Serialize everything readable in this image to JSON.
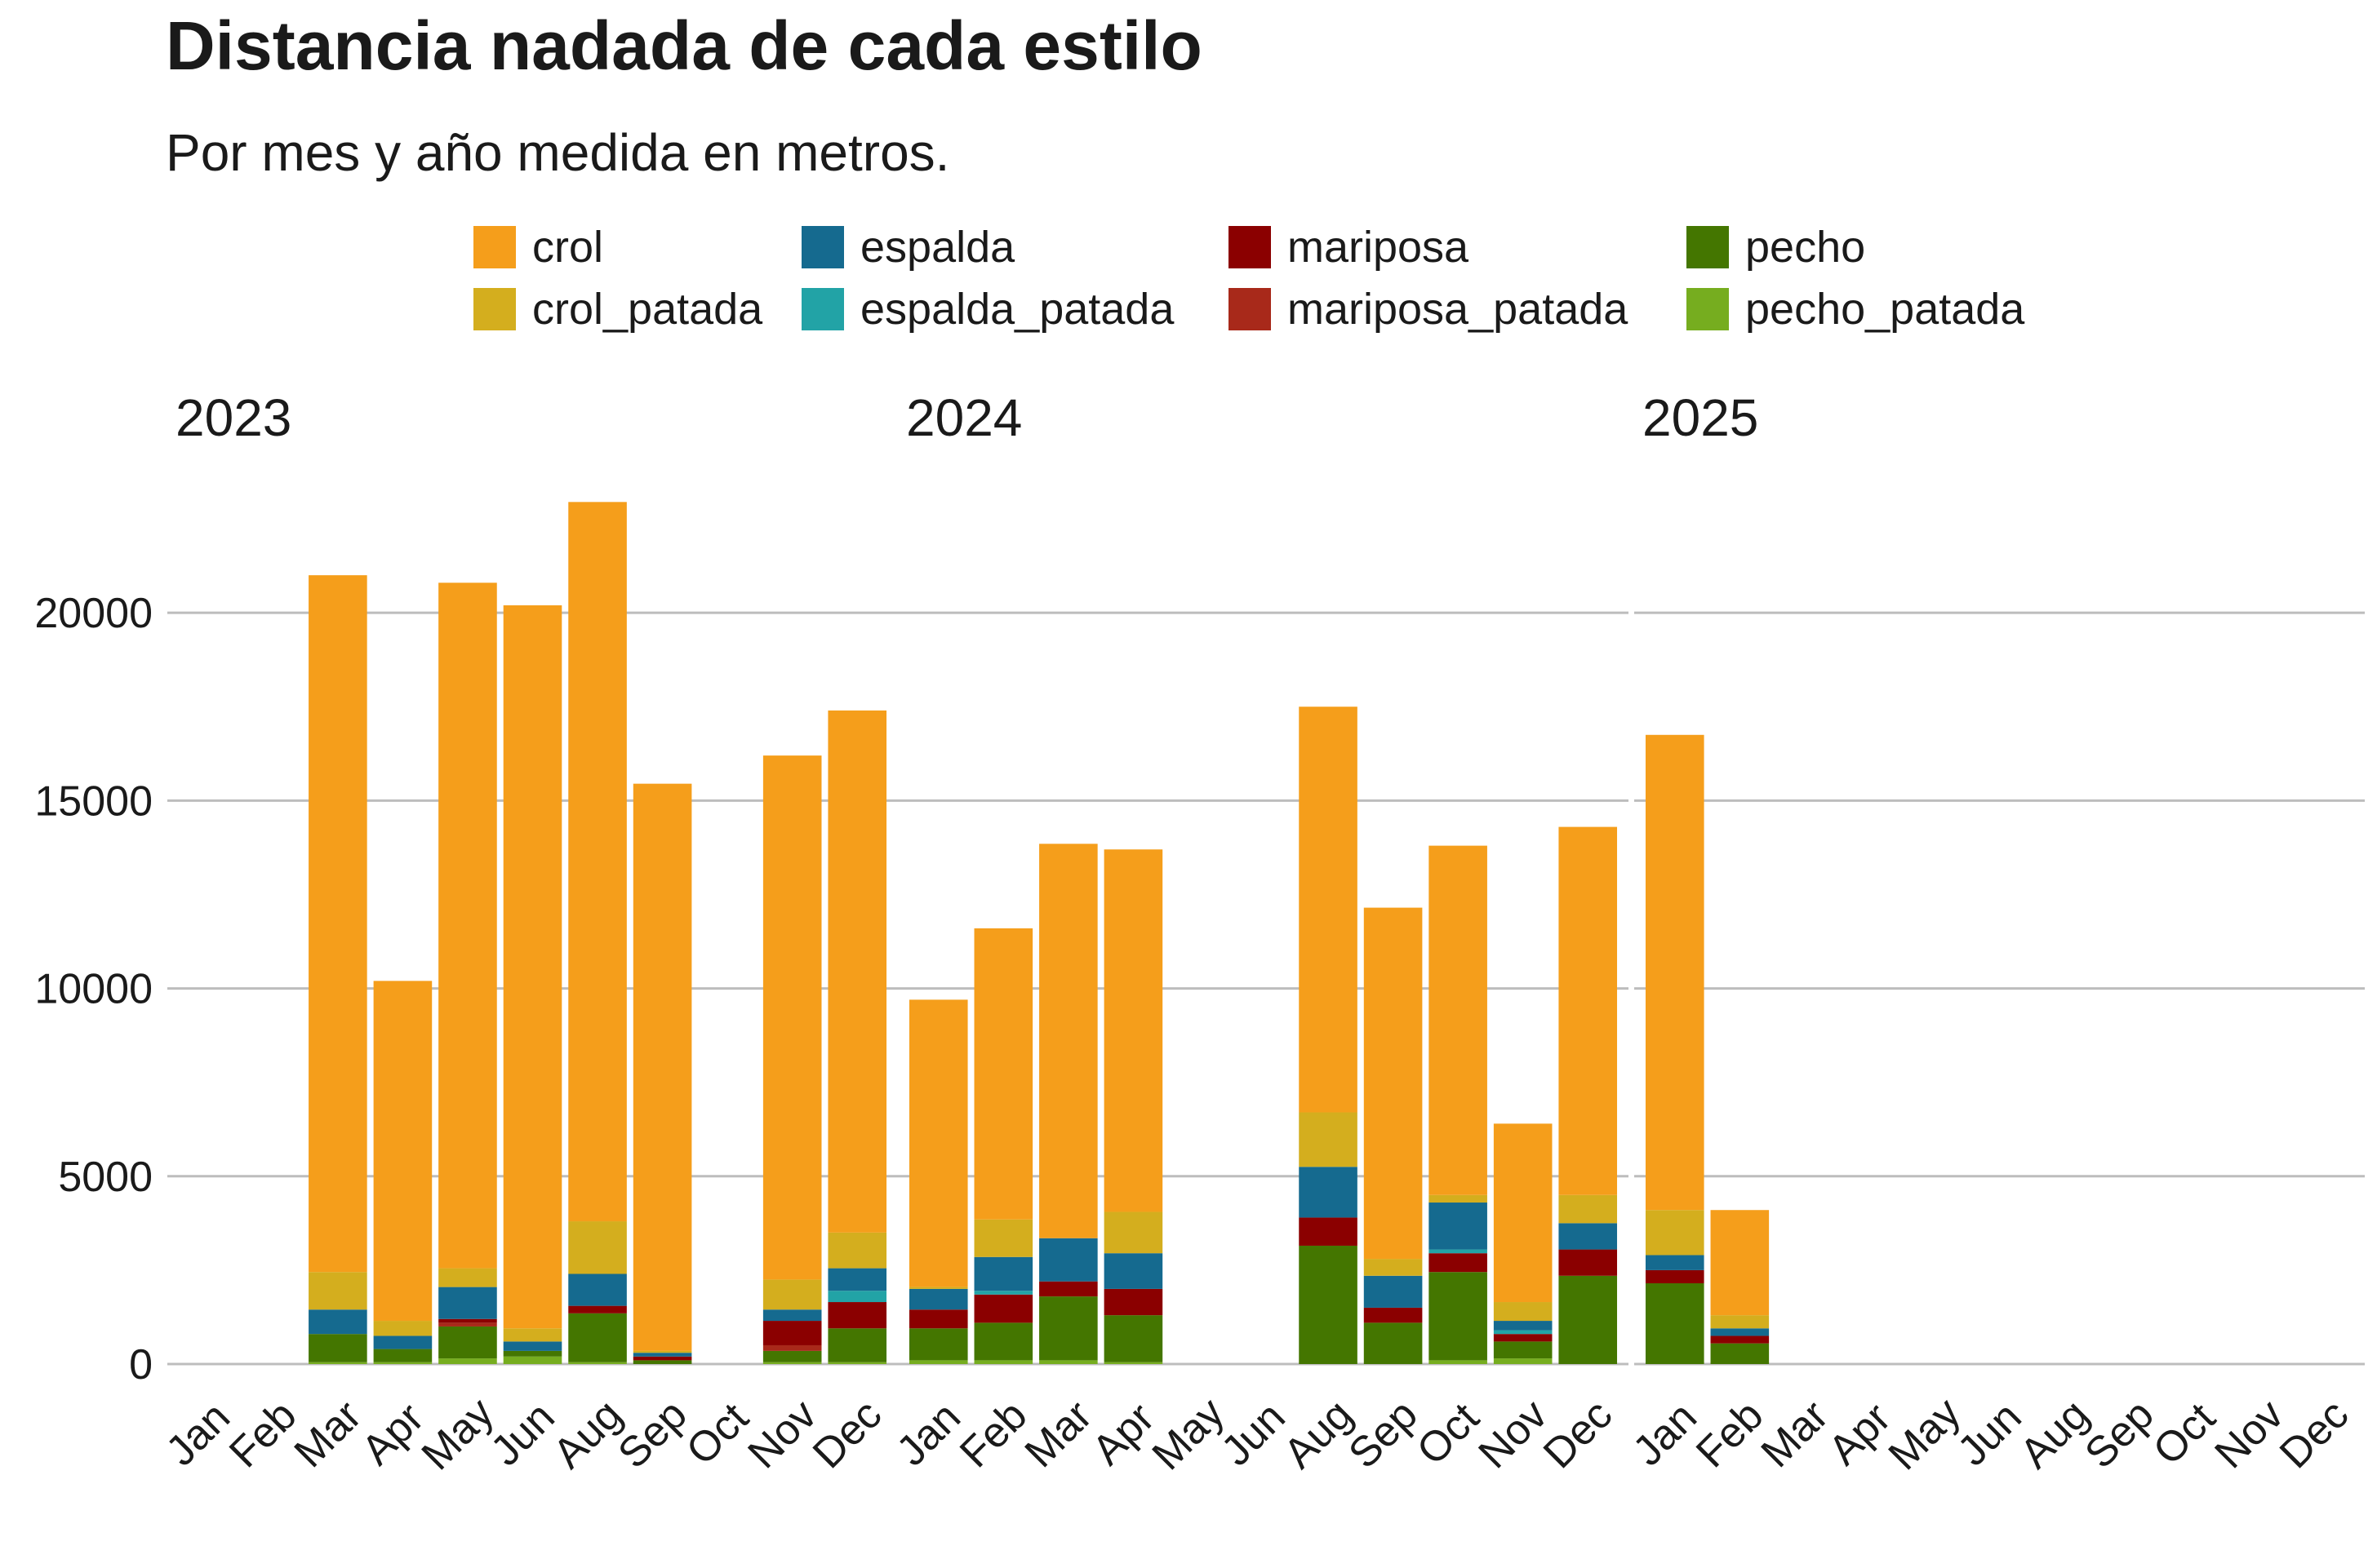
{
  "title": "Distancia nadada de cada estilo",
  "subtitle": "Por mes y año medida en metros.",
  "colors": {
    "crol": "#F59E1B",
    "crol_patada": "#D4AE1E",
    "espalda": "#156A8F",
    "espalda_patada": "#22A3A6",
    "mariposa": "#8B0000",
    "mariposa_patada": "#A8291A",
    "pecho": "#447600",
    "pecho_patada": "#76AD1F",
    "grid": "#BDBDBD"
  },
  "legend": [
    {
      "key": "crol",
      "label": "crol"
    },
    {
      "key": "crol_patada",
      "label": "crol_patada"
    },
    {
      "key": "espalda",
      "label": "espalda"
    },
    {
      "key": "espalda_patada",
      "label": "espalda_patada"
    },
    {
      "key": "mariposa",
      "label": "mariposa"
    },
    {
      "key": "mariposa_patada",
      "label": "mariposa_patada"
    },
    {
      "key": "pecho",
      "label": "pecho"
    },
    {
      "key": "pecho_patada",
      "label": "pecho_patada"
    }
  ],
  "chart_data": {
    "type": "bar",
    "stacked": true,
    "facets": [
      "2023",
      "2024",
      "2025"
    ],
    "categories": [
      "Jan",
      "Feb",
      "Mar",
      "Apr",
      "May",
      "Jun",
      "Aug",
      "Sep",
      "Oct",
      "Nov",
      "Dec"
    ],
    "stack_order": [
      "pecho_patada",
      "pecho",
      "mariposa_patada",
      "mariposa",
      "espalda_patada",
      "espalda",
      "crol_patada",
      "crol"
    ],
    "ylim": [
      0,
      23500
    ],
    "yticks": [
      0,
      5000,
      10000,
      15000,
      20000
    ],
    "grid": true,
    "legend_position": "top",
    "panels": [
      {
        "year": "2023",
        "bars": [
          {
            "month": "Jan"
          },
          {
            "month": "Feb"
          },
          {
            "month": "Mar",
            "values": {
              "pecho_patada": 50,
              "pecho": 750,
              "mariposa_patada": 0,
              "mariposa": 0,
              "espalda_patada": 0,
              "espalda": 650,
              "crol_patada": 1000,
              "crol": 18550
            }
          },
          {
            "month": "Apr",
            "values": {
              "pecho_patada": 50,
              "pecho": 350,
              "mariposa_patada": 0,
              "mariposa": 0,
              "espalda_patada": 0,
              "espalda": 350,
              "crol_patada": 400,
              "crol": 9050
            }
          },
          {
            "month": "May",
            "values": {
              "pecho_patada": 150,
              "pecho": 850,
              "mariposa_patada": 100,
              "mariposa": 100,
              "espalda_patada": 0,
              "espalda": 850,
              "crol_patada": 500,
              "crol": 18250
            }
          },
          {
            "month": "Jun",
            "values": {
              "pecho_patada": 200,
              "pecho": 150,
              "mariposa_patada": 0,
              "mariposa": 0,
              "espalda_patada": 0,
              "espalda": 250,
              "crol_patada": 350,
              "crol": 19250
            }
          },
          {
            "month": "Aug",
            "values": {
              "pecho_patada": 50,
              "pecho": 1300,
              "mariposa_patada": 0,
              "mariposa": 200,
              "espalda_patada": 0,
              "espalda": 850,
              "crol_patada": 1400,
              "crol": 19150
            }
          },
          {
            "month": "Sep",
            "values": {
              "pecho_patada": 0,
              "pecho": 100,
              "mariposa_patada": 0,
              "mariposa": 100,
              "espalda_patada": 0,
              "espalda": 100,
              "crol_patada": 50,
              "crol": 15100
            }
          },
          {
            "month": "Oct"
          },
          {
            "month": "Nov",
            "values": {
              "pecho_patada": 50,
              "pecho": 300,
              "mariposa_patada": 150,
              "mariposa": 650,
              "espalda_patada": 0,
              "espalda": 300,
              "crol_patada": 800,
              "crol": 13950
            }
          },
          {
            "month": "Dec",
            "values": {
              "pecho_patada": 50,
              "pecho": 900,
              "mariposa_patada": 0,
              "mariposa": 700,
              "espalda_patada": 300,
              "espalda": 600,
              "crol_patada": 950,
              "crol": 13900
            }
          }
        ]
      },
      {
        "year": "2024",
        "bars": [
          {
            "month": "Jan",
            "values": {
              "pecho_patada": 100,
              "pecho": 850,
              "mariposa_patada": 0,
              "mariposa": 500,
              "espalda_patada": 0,
              "espalda": 550,
              "crol_patada": 50,
              "crol": 7650
            }
          },
          {
            "month": "Feb",
            "values": {
              "pecho_patada": 100,
              "pecho": 1000,
              "mariposa_patada": 0,
              "mariposa": 750,
              "espalda_patada": 100,
              "espalda": 900,
              "crol_patada": 1000,
              "crol": 7750
            }
          },
          {
            "month": "Mar",
            "values": {
              "pecho_patada": 100,
              "pecho": 1700,
              "mariposa_patada": 0,
              "mariposa": 400,
              "espalda_patada": 0,
              "espalda": 1150,
              "crol_patada": 0,
              "crol": 10500
            }
          },
          {
            "month": "Apr",
            "values": {
              "pecho_patada": 50,
              "pecho": 1250,
              "mariposa_patada": 0,
              "mariposa": 700,
              "espalda_patada": 0,
              "espalda": 950,
              "crol_patada": 1100,
              "crol": 9650
            }
          },
          {
            "month": "May"
          },
          {
            "month": "Jun"
          },
          {
            "month": "Aug",
            "values": {
              "pecho_patada": 0,
              "pecho": 3150,
              "mariposa_patada": 0,
              "mariposa": 750,
              "espalda_patada": 0,
              "espalda": 1350,
              "crol_patada": 1450,
              "crol": 10800
            }
          },
          {
            "month": "Sep",
            "values": {
              "pecho_patada": 0,
              "pecho": 1100,
              "mariposa_patada": 0,
              "mariposa": 400,
              "espalda_patada": 0,
              "espalda": 850,
              "crol_patada": 450,
              "crol": 9350
            }
          },
          {
            "month": "Oct",
            "values": {
              "pecho_patada": 100,
              "pecho": 2350,
              "mariposa_patada": 0,
              "mariposa": 500,
              "espalda_patada": 100,
              "espalda": 1250,
              "crol_patada": 200,
              "crol": 9300
            }
          },
          {
            "month": "Nov",
            "values": {
              "pecho_patada": 150,
              "pecho": 450,
              "mariposa_patada": 0,
              "mariposa": 200,
              "espalda_patada": 100,
              "espalda": 250,
              "crol_patada": 500,
              "crol": 4750
            }
          },
          {
            "month": "Dec",
            "values": {
              "pecho_patada": 0,
              "pecho": 2350,
              "mariposa_patada": 0,
              "mariposa": 700,
              "espalda_patada": 0,
              "espalda": 700,
              "crol_patada": 750,
              "crol": 9800
            }
          }
        ]
      },
      {
        "year": "2025",
        "bars": [
          {
            "month": "Jan",
            "values": {
              "pecho_patada": 0,
              "pecho": 2150,
              "mariposa_patada": 0,
              "mariposa": 350,
              "espalda_patada": 0,
              "espalda": 400,
              "crol_patada": 1200,
              "crol": 12650
            }
          },
          {
            "month": "Feb",
            "values": {
              "pecho_patada": 0,
              "pecho": 550,
              "mariposa_patada": 0,
              "mariposa": 200,
              "espalda_patada": 0,
              "espalda": 200,
              "crol_patada": 350,
              "crol": 2800
            }
          },
          {
            "month": "Mar"
          },
          {
            "month": "Apr"
          },
          {
            "month": "May"
          },
          {
            "month": "Jun"
          },
          {
            "month": "Aug"
          },
          {
            "month": "Sep"
          },
          {
            "month": "Oct"
          },
          {
            "month": "Nov"
          },
          {
            "month": "Dec"
          }
        ]
      }
    ]
  }
}
